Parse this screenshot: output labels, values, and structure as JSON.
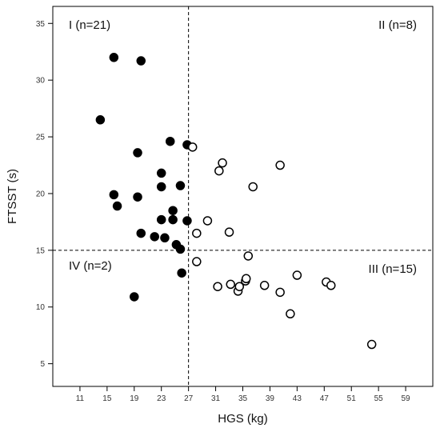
{
  "chart_data": {
    "type": "scatter",
    "xlabel": "HGS (kg)",
    "ylabel": "FTSST (s)",
    "xlim": [
      7,
      63
    ],
    "ylim": [
      3,
      36.5
    ],
    "x_ticks": [
      11,
      15,
      19,
      23,
      27,
      31,
      35,
      39,
      43,
      47,
      51,
      55,
      59
    ],
    "y_ticks": [
      5,
      10,
      15,
      20,
      25,
      30,
      35
    ],
    "cutoff_x": 27,
    "cutoff_y": 15,
    "grid": false,
    "quadrant_labels": [
      {
        "text": "I (n=21)",
        "position": "top-left"
      },
      {
        "text": "II (n=8)",
        "position": "top-right"
      },
      {
        "text": "III (n=15)",
        "position": "bottom-right"
      },
      {
        "text": "IV (n=2)",
        "position": "bottom-left"
      }
    ],
    "series": [
      {
        "marker": "filled-circle",
        "points": [
          [
            16,
            32
          ],
          [
            20,
            31.7
          ],
          [
            14,
            26.5
          ],
          [
            19.5,
            23.6
          ],
          [
            24.3,
            24.6
          ],
          [
            26.8,
            24.3
          ],
          [
            23,
            21.8
          ],
          [
            16,
            19.9
          ],
          [
            16.5,
            18.9
          ],
          [
            19.5,
            19.7
          ],
          [
            23,
            20.6
          ],
          [
            25.8,
            20.7
          ],
          [
            24.7,
            18.5
          ],
          [
            23,
            17.7
          ],
          [
            24.7,
            17.7
          ],
          [
            26.8,
            17.6
          ],
          [
            20,
            16.5
          ],
          [
            22,
            16.2
          ],
          [
            23.5,
            16.1
          ],
          [
            25.2,
            15.5
          ],
          [
            25.8,
            15.1
          ],
          [
            26,
            13
          ],
          [
            19,
            10.9
          ]
        ]
      },
      {
        "marker": "open-circle",
        "points": [
          [
            27.6,
            24.1
          ],
          [
            31.5,
            22
          ],
          [
            32,
            22.7
          ],
          [
            40.5,
            22.5
          ],
          [
            36.5,
            20.6
          ],
          [
            29.8,
            17.6
          ],
          [
            28.2,
            16.5
          ],
          [
            33,
            16.6
          ],
          [
            35.8,
            14.5
          ],
          [
            28.2,
            14
          ],
          [
            31.3,
            11.8
          ],
          [
            33.2,
            12
          ],
          [
            34.3,
            11.4
          ],
          [
            34.5,
            11.8
          ],
          [
            35.4,
            12.3
          ],
          [
            35.5,
            12.5
          ],
          [
            38.2,
            11.9
          ],
          [
            40.5,
            11.3
          ],
          [
            43,
            12.8
          ],
          [
            47.3,
            12.2
          ],
          [
            48,
            11.9
          ],
          [
            42,
            9.4
          ],
          [
            54,
            6.7
          ]
        ]
      }
    ]
  }
}
